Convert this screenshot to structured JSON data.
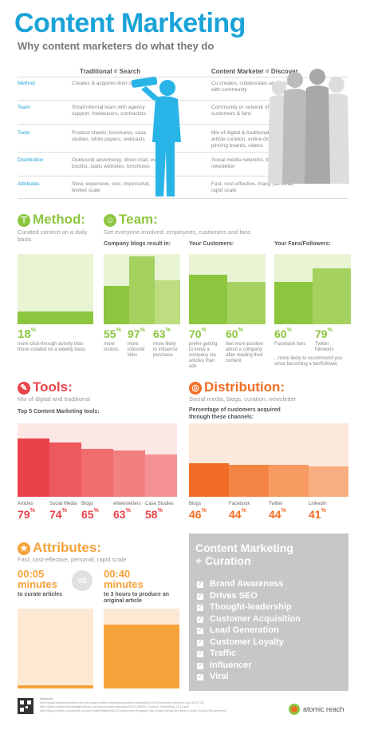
{
  "header": {
    "title": "Content Marketing",
    "subtitle": "Why content marketers do what they do"
  },
  "comparison": {
    "col1": "Traditional = Search",
    "col2": "Content Marketer = Discover",
    "rows": [
      {
        "label": "Method",
        "trad": "Creates & acquires their own content",
        "cm": "Co-creates, collaborates and curates with community"
      },
      {
        "label": "Team",
        "trad": "Small internal team with agency support, freelancers, contractors",
        "cm": "Community or network of employees, customers & fans"
      },
      {
        "label": "Tools",
        "trad": "Product sheets, brochures, case studies, white papers, webcasts",
        "cm": "Mix of digital & traditional tools, including article curation, online discussions, pinning boards, videos"
      },
      {
        "label": "Distribution",
        "trad": "Outbound advertising, direct mail, event booths, static websites, brochures",
        "cm": "Social media networks, blogs, curation, newsletter"
      },
      {
        "label": "Attributes",
        "trad": "Slow, expensive, one, impersonal, limited scale",
        "cm": "Fast, cost-effective, many, personal, rapid scale"
      }
    ]
  },
  "method": {
    "title": "Method:",
    "icon": "pin-icon",
    "sub": "Curated content on a daily basis",
    "pct": "18",
    "desc": "more click-through activity than those curated on a weekly basis",
    "value": 0.18
  },
  "team": {
    "title": "Team:",
    "icon": "people-icon",
    "sub": "Get everyone involved: employees, customers and fans",
    "groups": [
      {
        "header": "Company blogs result in:",
        "items": [
          {
            "pct": "55",
            "desc": "more visitors",
            "value": 0.55
          },
          {
            "pct": "97",
            "desc": "more inbound links",
            "value": 0.97
          },
          {
            "pct": "63",
            "desc": "more likely to influence purchase",
            "value": 0.63
          }
        ]
      },
      {
        "header": "Your Customers:",
        "items": [
          {
            "pct": "70",
            "desc": "prefer getting to know a company via articles than ads",
            "value": 0.7
          },
          {
            "pct": "60",
            "desc": "feel more positive about a company after reading their content",
            "value": 0.6
          }
        ]
      },
      {
        "header": "Your Fans/Followers:",
        "items": [
          {
            "pct": "60",
            "desc": "Facebook fans",
            "value": 0.6
          },
          {
            "pct": "79",
            "desc": "Twitter followers",
            "value": 0.79
          }
        ],
        "note": "...more likely to recommend you since becoming a fan/follower."
      }
    ]
  },
  "tools": {
    "title": "Tools:",
    "icon": "wrench-icon",
    "sub": "Mix of digital and traditional",
    "header": "Top 5 Content Marketing tools:",
    "items": [
      {
        "label": "Articles",
        "pct": "79",
        "value": 79,
        "color": "#e8434a"
      },
      {
        "label": "Social Media",
        "pct": "74",
        "value": 74,
        "color": "#ed5a5e"
      },
      {
        "label": "Blogs",
        "pct": "65",
        "value": 65,
        "color": "#f06e6e"
      },
      {
        "label": "eNewsletters",
        "pct": "63",
        "value": 63,
        "color": "#f38080"
      },
      {
        "label": "Case Studies",
        "pct": "58",
        "value": 58,
        "color": "#f59194"
      }
    ]
  },
  "distribution": {
    "title": "Distribution:",
    "icon": "share-icon",
    "sub": "Social media, blogs, curation, newsletter",
    "header": "Percentage of customers acquired through these channels:",
    "items": [
      {
        "label": "Blogs",
        "pct": "46",
        "value": 46,
        "color": "#f26d25"
      },
      {
        "label": "Facebook",
        "pct": "44",
        "value": 44,
        "color": "#f48444"
      },
      {
        "label": "Twitter",
        "pct": "44",
        "value": 44,
        "color": "#f69a62"
      },
      {
        "label": "LinkedIn",
        "pct": "41",
        "value": 41,
        "color": "#f8ae80"
      }
    ]
  },
  "attributes": {
    "title": "Attributes:",
    "icon": "star-icon",
    "sub": "Fast, cost-effective, personal, rapid scale",
    "left": {
      "time": "00:05",
      "unit": "minutes",
      "desc": "to curate articles",
      "value": 5
    },
    "vs": "VS",
    "right": {
      "time": "00:40",
      "unit": "minutes",
      "desc": "to 3 hours to produce an original article",
      "value": 40
    }
  },
  "curation": {
    "title1": "Content Marketing",
    "title2": "+ Curation",
    "items": [
      "Brand Awareness",
      "Drives SEO",
      "Thought-leadership",
      "Customer Acquisition",
      "Lead Generation",
      "Customer Loyalty",
      "Traffic",
      "Influencer",
      "Viral"
    ]
  },
  "footer": {
    "sources_label": "Sources:",
    "sources": [
      "http://www.businessinsider.com/roundup/content-marketing/content-marketing-2013-essential-methods-ppt-4101726",
      "http://www.contentmarketinginstitute.com/wp-content/uploads/2012/10/B2B_Content_Marketing_2013.pdf",
      "http://blog.crmlink.com/press-center/content/data/MDC/Consumers-Engaged-Via-Social-Media-Are-More-Likely-To-Buy-Recommend"
    ],
    "brand": "atomic reach"
  },
  "colors": {
    "blue": "#1ba3d8",
    "green": "#8cc63f",
    "red": "#e8434a",
    "orange": "#f6a23b",
    "gray": "#c7c7c7"
  }
}
